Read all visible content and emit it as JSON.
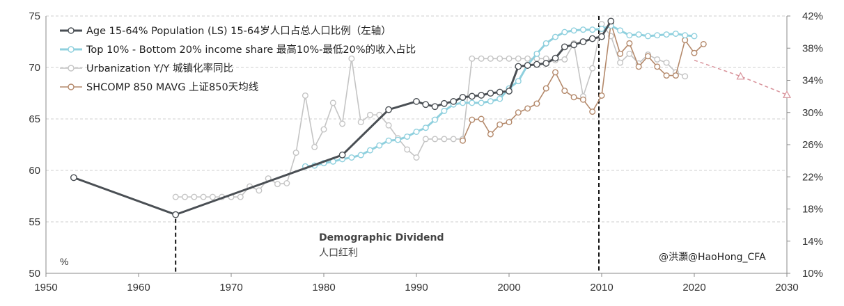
{
  "chart_data": {
    "type": "line",
    "xlim": [
      1950,
      2030
    ],
    "ylim_left": [
      50,
      75
    ],
    "ylim_right": [
      0.1,
      0.42
    ],
    "x_ticks": [
      "1950",
      "1960",
      "1970",
      "1980",
      "1990",
      "2000",
      "2010",
      "2020",
      "2030"
    ],
    "left_ticks": [
      "50",
      "55",
      "60",
      "65",
      "70",
      "75"
    ],
    "right_ticks": [
      "10%",
      "14%",
      "18%",
      "22%",
      "26%",
      "30%",
      "34%",
      "38%",
      "42%"
    ],
    "left_unit": "%",
    "grid": "horizontal dashed",
    "legend_placement": "top-left",
    "annotation": {
      "line1": "Demographic Dividend",
      "line2": "人口红利"
    },
    "watermark": "@洪灝@HaoHong_CFA",
    "vlines": [
      1964,
      2009.7
    ],
    "series": [
      {
        "name": "Age 15-64% Population (LS) 15-64岁人口占总人口比例（左轴）",
        "axis": "left",
        "color": "#4a4f54",
        "points": [
          [
            1953,
            59.3
          ],
          [
            1964,
            55.7
          ],
          [
            1982,
            61.5
          ],
          [
            1987,
            65.9
          ],
          [
            1990,
            66.7
          ],
          [
            1991,
            66.4
          ],
          [
            1992,
            66.2
          ],
          [
            1993,
            66.5
          ],
          [
            1994,
            66.7
          ],
          [
            1995,
            67.1
          ],
          [
            1996,
            67.2
          ],
          [
            1997,
            67.3
          ],
          [
            1998,
            67.5
          ],
          [
            1999,
            67.6
          ],
          [
            2000,
            67.7
          ],
          [
            2001,
            70.1
          ],
          [
            2002,
            70.2
          ],
          [
            2003,
            70.3
          ],
          [
            2004,
            70.4
          ],
          [
            2005,
            70.9
          ],
          [
            2006,
            72.0
          ],
          [
            2007,
            72.2
          ],
          [
            2008,
            72.5
          ],
          [
            2009,
            72.8
          ],
          [
            2010,
            73.0
          ],
          [
            2011,
            74.5
          ]
        ]
      },
      {
        "name": "Top 10% - Bottom 20% income share 最高10%-最低20%的收入占比",
        "axis": "right",
        "color": "#8fd0de",
        "points": [
          [
            1978,
            0.233
          ],
          [
            1979,
            0.234
          ],
          [
            1980,
            0.237
          ],
          [
            1981,
            0.239
          ],
          [
            1982,
            0.242
          ],
          [
            1983,
            0.244
          ],
          [
            1984,
            0.247
          ],
          [
            1985,
            0.253
          ],
          [
            1986,
            0.259
          ],
          [
            1987,
            0.265
          ],
          [
            1988,
            0.266
          ],
          [
            1989,
            0.27
          ],
          [
            1990,
            0.276
          ],
          [
            1991,
            0.281
          ],
          [
            1992,
            0.291
          ],
          [
            1993,
            0.302
          ],
          [
            1994,
            0.31
          ],
          [
            1995,
            0.312
          ],
          [
            1996,
            0.312
          ],
          [
            1997,
            0.312
          ],
          [
            1998,
            0.314
          ],
          [
            1999,
            0.317
          ],
          [
            2000,
            0.33
          ],
          [
            2001,
            0.339
          ],
          [
            2002,
            0.359
          ],
          [
            2003,
            0.373
          ],
          [
            2004,
            0.386
          ],
          [
            2005,
            0.394
          ],
          [
            2006,
            0.4
          ],
          [
            2007,
            0.402
          ],
          [
            2008,
            0.403
          ],
          [
            2009,
            0.403
          ],
          [
            2010,
            0.404
          ],
          [
            2011,
            0.408
          ],
          [
            2012,
            0.402
          ],
          [
            2013,
            0.396
          ],
          [
            2014,
            0.397
          ],
          [
            2015,
            0.395
          ],
          [
            2016,
            0.396
          ],
          [
            2017,
            0.397
          ],
          [
            2018,
            0.398
          ],
          [
            2019,
            0.396
          ],
          [
            2020,
            0.395
          ]
        ]
      },
      {
        "name": "Urbanization Y/Y 城镇化率同比",
        "axis": "right",
        "color": "#c4c4c4",
        "points": [
          [
            1964,
            0.195
          ],
          [
            1965,
            0.195
          ],
          [
            1966,
            0.195
          ],
          [
            1967,
            0.195
          ],
          [
            1968,
            0.195
          ],
          [
            1969,
            0.195
          ],
          [
            1970,
            0.195
          ],
          [
            1971,
            0.195
          ],
          [
            1972,
            0.208
          ],
          [
            1973,
            0.203
          ],
          [
            1974,
            0.218
          ],
          [
            1975,
            0.211
          ],
          [
            1976,
            0.212
          ],
          [
            1977,
            0.25
          ],
          [
            1978,
            0.321
          ],
          [
            1979,
            0.257
          ],
          [
            1980,
            0.279
          ],
          [
            1981,
            0.312
          ],
          [
            1982,
            0.286
          ],
          [
            1983,
            0.367
          ],
          [
            1984,
            0.288
          ],
          [
            1985,
            0.297
          ],
          [
            1986,
            0.297
          ],
          [
            1987,
            0.284
          ],
          [
            1988,
            0.268
          ],
          [
            1989,
            0.254
          ],
          [
            1990,
            0.244
          ],
          [
            1991,
            0.267
          ],
          [
            1992,
            0.267
          ],
          [
            1993,
            0.267
          ],
          [
            1994,
            0.267
          ],
          [
            1995,
            0.267
          ],
          [
            1996,
            0.367
          ],
          [
            1997,
            0.367
          ],
          [
            1998,
            0.367
          ],
          [
            1999,
            0.367
          ],
          [
            2000,
            0.367
          ],
          [
            2001,
            0.367
          ],
          [
            2002,
            0.367
          ],
          [
            2003,
            0.367
          ],
          [
            2004,
            0.367
          ],
          [
            2005,
            0.365
          ],
          [
            2006,
            0.366
          ],
          [
            2007,
            0.386
          ],
          [
            2008,
            0.32
          ],
          [
            2009,
            0.355
          ],
          [
            2010,
            0.41
          ],
          [
            2011,
            0.395
          ],
          [
            2012,
            0.362
          ],
          [
            2013,
            0.373
          ],
          [
            2014,
            0.361
          ],
          [
            2015,
            0.372
          ],
          [
            2016,
            0.366
          ],
          [
            2017,
            0.362
          ],
          [
            2018,
            0.35
          ],
          [
            2019,
            0.345
          ]
        ]
      },
      {
        "name": "SHCOMP 850 MAVG 上证850天均线",
        "axis": "right",
        "color": "#b4896b",
        "points": [
          [
            1995,
            0.265
          ],
          [
            1996,
            0.291
          ],
          [
            1997,
            0.292
          ],
          [
            1998,
            0.273
          ],
          [
            1999,
            0.285
          ],
          [
            2000,
            0.288
          ],
          [
            2001,
            0.3
          ],
          [
            2002,
            0.305
          ],
          [
            2003,
            0.311
          ],
          [
            2004,
            0.33
          ],
          [
            2005,
            0.35
          ],
          [
            2006,
            0.327
          ],
          [
            2007,
            0.319
          ],
          [
            2008,
            0.316
          ],
          [
            2009,
            0.301
          ],
          [
            2010,
            0.321
          ],
          [
            2011,
            0.411
          ],
          [
            2012,
            0.373
          ],
          [
            2013,
            0.386
          ],
          [
            2014,
            0.357
          ],
          [
            2015,
            0.37
          ],
          [
            2016,
            0.357
          ],
          [
            2017,
            0.346
          ],
          [
            2018,
            0.346
          ],
          [
            2019,
            0.39
          ],
          [
            2020,
            0.374
          ],
          [
            2021,
            0.385
          ]
        ]
      },
      {
        "name": "",
        "axis": "right",
        "color": "#d8929a",
        "dashed": true,
        "points": [
          [
            2020,
            0.365
          ],
          [
            2025,
            0.345
          ],
          [
            2030,
            0.322
          ]
        ]
      }
    ]
  }
}
